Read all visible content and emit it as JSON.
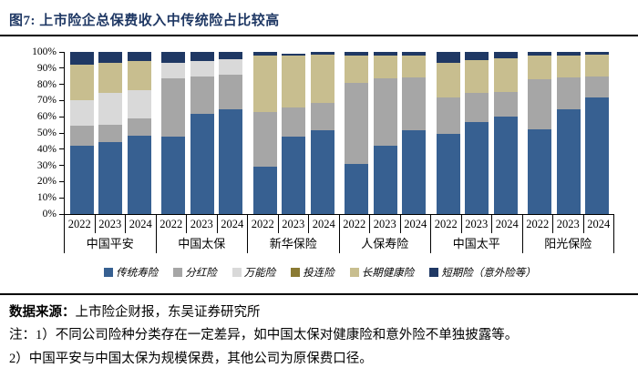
{
  "title": "图7:  上市险企总保费收入中传统险占比较高",
  "chart_data": {
    "type": "bar",
    "stacked": true,
    "percent": true,
    "grid": false,
    "legend_position": "bottom",
    "ylim": [
      0,
      100
    ],
    "y_ticks": [
      "100%",
      "90%",
      "80%",
      "70%",
      "60%",
      "50%",
      "40%",
      "30%",
      "20%",
      "10%",
      "0%"
    ],
    "groups": [
      {
        "company": "中国平安",
        "years": [
          "2022",
          "2023",
          "2024"
        ]
      },
      {
        "company": "中国太保",
        "years": [
          "2022",
          "2023",
          "2024"
        ]
      },
      {
        "company": "新华保险",
        "years": [
          "2022",
          "2023",
          "2024"
        ]
      },
      {
        "company": "人保寿险",
        "years": [
          "2022",
          "2023",
          "2024"
        ]
      },
      {
        "company": "中国太平",
        "years": [
          "2022",
          "2023",
          "2024"
        ]
      },
      {
        "company": "阳光保险",
        "years": [
          "2022",
          "2023",
          "2024"
        ]
      }
    ],
    "series": [
      {
        "id": "traditional-life",
        "name": "传统寿险",
        "color": "#376091",
        "values": [
          42,
          44.5,
          48.5,
          47.5,
          62,
          64.5,
          29,
          47.5,
          51.5,
          31,
          42,
          51.5,
          49.5,
          57,
          60,
          52,
          64.5,
          72
        ]
      },
      {
        "id": "participating",
        "name": "分红险",
        "color": "#A6A6A6",
        "values": [
          12.5,
          10.5,
          10.5,
          36,
          23,
          21.5,
          34,
          18,
          17,
          50,
          41.5,
          33,
          22.5,
          17.5,
          15.5,
          31,
          20,
          13
        ]
      },
      {
        "id": "universal",
        "name": "万能险",
        "color": "#D9D9D9",
        "values": [
          16,
          19.5,
          17.5,
          9.5,
          9.5,
          9.5,
          0,
          0,
          0,
          0,
          0,
          0,
          0,
          0,
          0,
          0,
          0,
          0
        ]
      },
      {
        "id": "unit-linked",
        "name": "投连险",
        "color": "#8A7A33",
        "values": [
          0,
          0,
          0,
          0,
          0,
          0,
          0,
          0,
          0,
          0,
          0,
          0,
          0,
          0,
          0,
          0,
          0,
          0
        ]
      },
      {
        "id": "long-term-health",
        "name": "长期健康险",
        "color": "#C8BE8F",
        "values": [
          21.5,
          19,
          18,
          0,
          0,
          0,
          35,
          32,
          30,
          17,
          14.5,
          13.5,
          21.5,
          20.5,
          20.5,
          14.5,
          13.5,
          13.5
        ]
      },
      {
        "id": "short-term",
        "name": "短期险（意外险等）",
        "color": "#1F3864",
        "values": [
          8,
          6.5,
          5.5,
          7,
          5.5,
          4.5,
          2,
          1.5,
          1.5,
          2,
          2,
          2,
          6.5,
          5,
          4,
          2.5,
          2,
          1.5
        ]
      }
    ]
  },
  "footer": {
    "source_label": "数据来源：",
    "source_text": "上市险企财报，东吴证券研究所",
    "note1": "注：1）不同公司险种分类存在一定差异，如中国太保对健康险和意外险不单独披露等。",
    "note2": "2）中国平安与中国太保为规模保费，其他公司为原保费口径。"
  }
}
